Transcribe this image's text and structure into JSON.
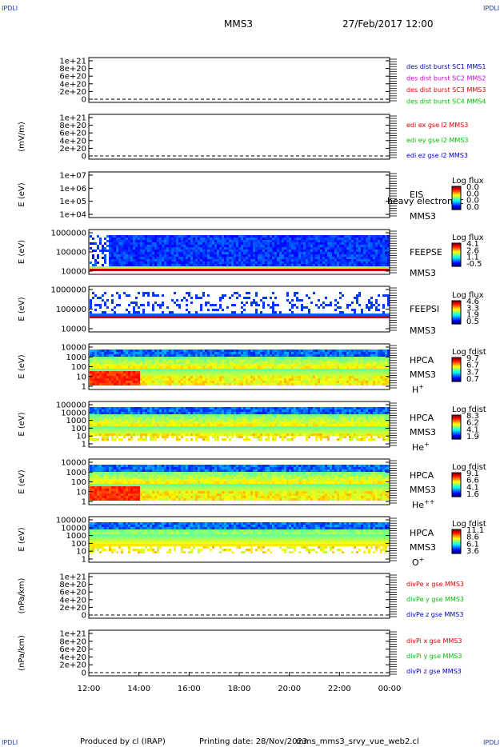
{
  "header": {
    "corner_label": "IPDLI",
    "spacecraft": "MMS3",
    "datetime": "27/Feb/2017 12:00"
  },
  "footer": {
    "producer": "Produced by cl (IRAP)",
    "printing": "Printing date: 28/Nov/2023",
    "script": "mms_mms3_srvy_vue_web2.cl"
  },
  "colors": {
    "frame": "#000000",
    "mms1": "#0000c8",
    "mms2": "#d000d0",
    "mms3": "#e00000",
    "mms4": "#00c000",
    "red": "#e00000",
    "green": "#00c000",
    "blue": "#0000c8"
  },
  "chart_data": {
    "type": "heatmap",
    "x_axis": {
      "range": [
        "12:00",
        "00:00"
      ],
      "ticks": [
        "12:00",
        "14:00",
        "16:00",
        "18:00",
        "20:00",
        "22:00",
        "00:00"
      ]
    },
    "panels": [
      {
        "id": "des-dist",
        "kind": "line",
        "ylabel": "",
        "ticks": [
          "1e+21",
          "8e+20",
          "6e+20",
          "4e+20",
          "2e+20",
          "0"
        ],
        "legend": [
          {
            "text": "des dist burst SC1 MMS1",
            "color": "mms1"
          },
          {
            "text": "des dist burst SC2 MMS2",
            "color": "mms2"
          },
          {
            "text": "des dist burst SC3 MMS3",
            "color": "mms3"
          },
          {
            "text": "des dist burst SC4 MMS4",
            "color": "mms4"
          }
        ]
      },
      {
        "id": "edi",
        "kind": "line",
        "ylabel": "(mV/m)",
        "ticks": [
          "1e+21",
          "8e+20",
          "6e+20",
          "4e+20",
          "2e+20",
          "0"
        ],
        "legend": [
          {
            "text": "edi ex gse l2 MMS3",
            "color": "red"
          },
          {
            "text": "edi ey gse l2 MMS3",
            "color": "green"
          },
          {
            "text": "edi ez gse l2 MMS3",
            "color": "blue"
          }
        ]
      },
      {
        "id": "eis",
        "kind": "empty-spec",
        "ylabel": "E (eV)",
        "ticks": [
          "1e+07",
          "1e+06",
          "1e+05",
          "1e+04"
        ],
        "labels": [
          "EIS",
          "MMS3"
        ],
        "overlay": "heavy electron tc",
        "colorbar": {
          "title": "Log flux",
          "ticks": [
            "0.0",
            "0.0",
            "0.0",
            "0.0"
          ]
        }
      },
      {
        "id": "feepse",
        "kind": "feeps",
        "ylabel": "E (eV)",
        "ticks": [
          "1000000",
          "100000",
          "10000"
        ],
        "labels": [
          "FEEPSE",
          "MMS3"
        ],
        "colorbar": {
          "title": "Log flux",
          "ticks": [
            "4.1",
            "2.6",
            "1.1",
            "-0.5"
          ]
        }
      },
      {
        "id": "feepsi",
        "kind": "feeps-sparse",
        "ylabel": "E (eV)",
        "ticks": [
          "1000000",
          "100000",
          "10000"
        ],
        "labels": [
          "FEEPSI",
          "MMS3"
        ],
        "colorbar": {
          "title": "Log flux",
          "ticks": [
            "4.6",
            "3.3",
            "1.9",
            "0.5"
          ]
        }
      },
      {
        "id": "hpca-h",
        "kind": "hpca",
        "species": "H+",
        "ylabel": "E (eV)",
        "ticks": [
          "10000",
          "1000",
          "100",
          "10",
          "1"
        ],
        "labels": [
          "HPCA",
          "MMS3"
        ],
        "ion": "H",
        "ion_sup": "+",
        "colorbar": {
          "title": "Log fdist",
          "ticks": [
            "9.7",
            "6.7",
            "3.7",
            "0.7"
          ]
        }
      },
      {
        "id": "hpca-he",
        "kind": "hpca",
        "species": "He+",
        "ylabel": "E (eV)",
        "ticks": [
          "100000",
          "10000",
          "1000",
          "100",
          "10",
          "1"
        ],
        "labels": [
          "HPCA",
          "MMS3"
        ],
        "ion": "He",
        "ion_sup": "+",
        "colorbar": {
          "title": "Log fdist",
          "ticks": [
            "8.3",
            "6.2",
            "4.1",
            "1.9"
          ]
        }
      },
      {
        "id": "hpca-hepp",
        "kind": "hpca",
        "species": "He++",
        "ylabel": "E (eV)",
        "ticks": [
          "10000",
          "1000",
          "100",
          "10",
          "1"
        ],
        "labels": [
          "HPCA",
          "MMS3"
        ],
        "ion": "He",
        "ion_sup": "++",
        "colorbar": {
          "title": "Log fdist",
          "ticks": [
            "9.1",
            "6.6",
            "4.1",
            "1.6"
          ]
        }
      },
      {
        "id": "hpca-o",
        "kind": "hpca",
        "species": "O+",
        "ylabel": "E (eV)",
        "ticks": [
          "100000",
          "10000",
          "1000",
          "100",
          "10",
          "1"
        ],
        "labels": [
          "HPCA",
          "MMS3"
        ],
        "ion": "O",
        "ion_sup": "+",
        "colorbar": {
          "title": "Log fdist",
          "ticks": [
            "11.1",
            "8.6",
            "6.1",
            "3.6"
          ]
        }
      },
      {
        "id": "divpe",
        "kind": "line",
        "ylabel": "(nPa/km)",
        "ticks": [
          "1e+21",
          "8e+20",
          "6e+20",
          "4e+20",
          "2e+20",
          "0"
        ],
        "legend": [
          {
            "text": "divPe x gse MMS3",
            "color": "red"
          },
          {
            "text": "divPe y gse MMS3",
            "color": "green"
          },
          {
            "text": "divPe z gse MMS3",
            "color": "blue"
          }
        ]
      },
      {
        "id": "divpi",
        "kind": "line",
        "ylabel": "(nPa/km)",
        "ticks": [
          "1e+21",
          "8e+20",
          "6e+20",
          "4e+20",
          "2e+20",
          "0"
        ],
        "legend": [
          {
            "text": "divPi x gse MMS3",
            "color": "red"
          },
          {
            "text": "divPi y gse MMS3",
            "color": "green"
          },
          {
            "text": "divPi z gse MMS3",
            "color": "blue"
          }
        ]
      }
    ]
  }
}
